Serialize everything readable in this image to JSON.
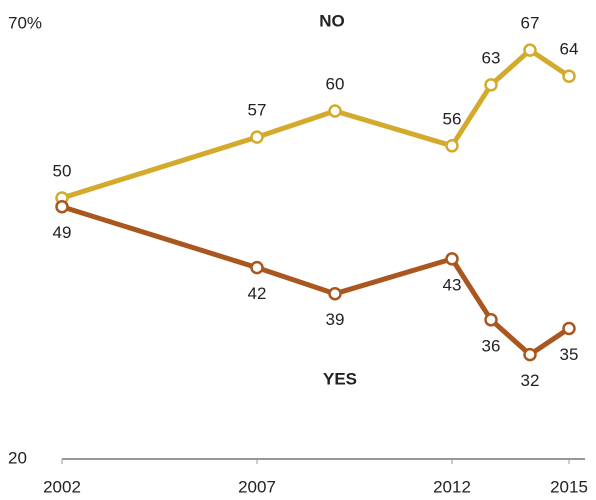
{
  "chart_data": {
    "type": "line",
    "x": [
      2002,
      2007,
      2009,
      2012,
      2013,
      2014,
      2015
    ],
    "series": [
      {
        "name": "NO",
        "color": "#d4aa2c",
        "values": [
          50,
          57,
          60,
          56,
          63,
          67,
          64
        ]
      },
      {
        "name": "YES",
        "color": "#a9561f",
        "values": [
          49,
          42,
          39,
          43,
          36,
          32,
          35
        ]
      }
    ],
    "xlim": [
      2002,
      2015
    ],
    "xticks": [
      2002,
      2007,
      2012,
      2015
    ],
    "ylim": [
      20,
      70
    ],
    "yticks": [
      20,
      {
        "value": 70,
        "label": "70%"
      }
    ]
  }
}
